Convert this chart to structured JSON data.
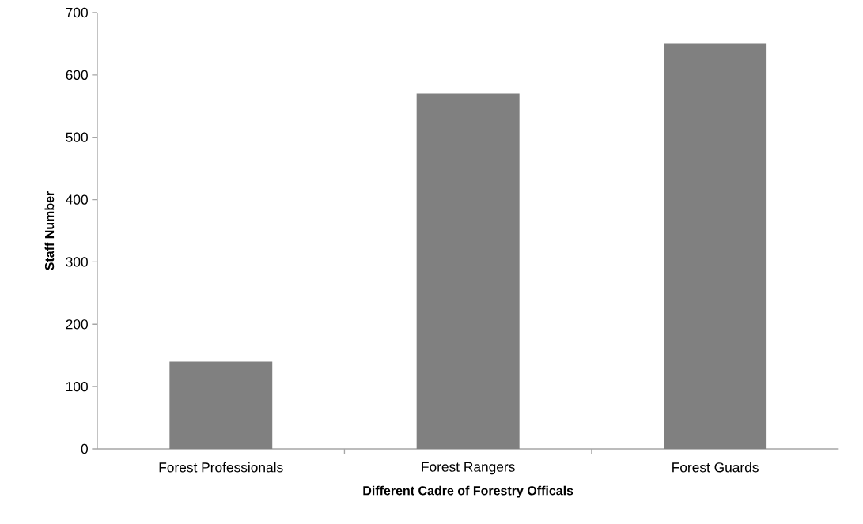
{
  "chart_data": {
    "type": "bar",
    "xlabel": "Different Cadre of Forestry Officals",
    "ylabel": "Staff Number",
    "categories": [
      "Forest Professionals",
      "Forest Rangers",
      "Forest Guards"
    ],
    "values": [
      140,
      570,
      650
    ],
    "color": "#808080",
    "ylim": [
      0,
      700
    ],
    "yticks": [
      0,
      100,
      200,
      300,
      400,
      500,
      600,
      700
    ],
    "grid": false
  }
}
